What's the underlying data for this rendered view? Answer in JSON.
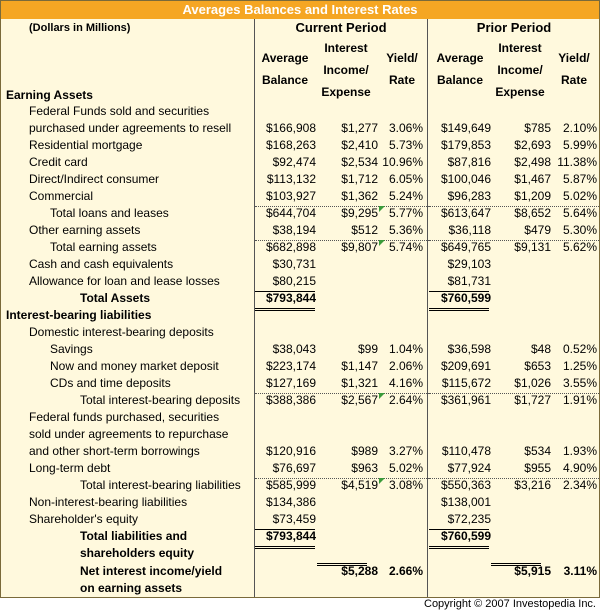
{
  "title": "Averages Balances and Interest Rates",
  "units": "(Dollars in Millions)",
  "groups": {
    "current": "Current Period",
    "prior": "Prior Period"
  },
  "col_headers": {
    "avg_balance": "Average Balance",
    "interest": "Interest Income/ Expense",
    "yield": "Yield/ Rate"
  },
  "labels": [
    {
      "text": "Earning Assets",
      "bold": true
    },
    {
      "text": "Federal Funds sold and securities",
      "bold": false
    },
    {
      "text": "purchased under agreements to resell",
      "bold": false
    },
    {
      "text": "Residential mortgage",
      "bold": false
    },
    {
      "text": "Credit card",
      "bold": false
    },
    {
      "text": "Direct/Indirect consumer",
      "bold": false
    },
    {
      "text": "Commercial",
      "bold": false
    },
    {
      "text": "Total loans and leases",
      "bold": false
    },
    {
      "text": "Other earning assets",
      "bold": false
    },
    {
      "text": "Total earning assets",
      "bold": false
    },
    {
      "text": "Cash and cash equivalents",
      "bold": false
    },
    {
      "text": "Allowance for loan and lease losses",
      "bold": false
    },
    {
      "text": "Total Assets",
      "bold": true
    },
    {
      "text": "Interest-bearing liabilities",
      "bold": true
    },
    {
      "text": "Domestic interest-bearing deposits",
      "bold": false
    },
    {
      "text": "Savings",
      "bold": false
    },
    {
      "text": "Now and money market deposit",
      "bold": false
    },
    {
      "text": "CDs and time deposits",
      "bold": false
    },
    {
      "text": "Total interest-bearing deposits",
      "bold": false
    },
    {
      "text": "Federal funds purchased, securities",
      "bold": false
    },
    {
      "text": "sold under agreements to repurchase",
      "bold": false
    },
    {
      "text": "and other short-term borrowings",
      "bold": false
    },
    {
      "text": "Long-term debt",
      "bold": false
    },
    {
      "text": "Total interest-bearing liabilities",
      "bold": false
    },
    {
      "text": "Non-interest-bearing liabilities",
      "bold": false
    },
    {
      "text": "Shareholder's equity",
      "bold": false
    },
    {
      "text": "Total liabilities and",
      "bold": true
    },
    {
      "text": "shareholders equity",
      "bold": true
    },
    {
      "text": "Net interest income/yield",
      "bold": true
    },
    {
      "text": "on earning assets",
      "bold": true
    }
  ],
  "data_rows": [
    {
      "current": [
        "$166,908",
        "$1,277",
        "3.06%"
      ],
      "prior": [
        "$149,649",
        "$785",
        "2.10%"
      ]
    },
    {
      "current": [
        "$168,263",
        "$2,410",
        "5.73%"
      ],
      "prior": [
        "$179,853",
        "$2,693",
        "5.99%"
      ]
    },
    {
      "current": [
        "$92,474",
        "$2,534",
        "10.96%"
      ],
      "prior": [
        "$87,816",
        "$2,498",
        "11.38%"
      ]
    },
    {
      "current": [
        "$113,132",
        "$1,712",
        "6.05%"
      ],
      "prior": [
        "$100,046",
        "$1,467",
        "5.87%"
      ]
    },
    {
      "current": [
        "$103,927",
        "$1,362",
        "5.24%"
      ],
      "prior": [
        "$96,283",
        "$1,209",
        "5.02%"
      ]
    },
    {
      "current": [
        "$644,704",
        "$9,295",
        "5.77%"
      ],
      "prior": [
        "$613,647",
        "$8,652",
        "5.64%"
      ]
    },
    {
      "current": [
        "$38,194",
        "$512",
        "5.36%"
      ],
      "prior": [
        "$36,118",
        "$479",
        "5.30%"
      ]
    },
    {
      "current": [
        "$682,898",
        "$9,807",
        "5.74%"
      ],
      "prior": [
        "$649,765",
        "$9,131",
        "5.62%"
      ]
    },
    {
      "current": [
        "$30,731",
        "",
        ""
      ],
      "prior": [
        "$29,103",
        "",
        ""
      ]
    },
    {
      "current": [
        "$80,215",
        "",
        ""
      ],
      "prior": [
        "$81,731",
        "",
        ""
      ]
    },
    {
      "current": [
        "$793,844",
        "",
        ""
      ],
      "prior": [
        "$760,599",
        "",
        ""
      ]
    },
    {
      "current": [
        "$38,043",
        "$99",
        "1.04%"
      ],
      "prior": [
        "$36,598",
        "$48",
        "0.52%"
      ]
    },
    {
      "current": [
        "$223,174",
        "$1,147",
        "2.06%"
      ],
      "prior": [
        "$209,691",
        "$653",
        "1.25%"
      ]
    },
    {
      "current": [
        "$127,169",
        "$1,321",
        "4.16%"
      ],
      "prior": [
        "$115,672",
        "$1,026",
        "3.55%"
      ]
    },
    {
      "current": [
        "$388,386",
        "$2,567",
        "2.64%"
      ],
      "prior": [
        "$361,961",
        "$1,727",
        "1.91%"
      ]
    },
    {
      "current": [
        "$120,916",
        "$989",
        "3.27%"
      ],
      "prior": [
        "$110,478",
        "$534",
        "1.93%"
      ]
    },
    {
      "current": [
        "$76,697",
        "$963",
        "5.02%"
      ],
      "prior": [
        "$77,924",
        "$955",
        "4.90%"
      ]
    },
    {
      "current": [
        "$585,999",
        "$4,519",
        "3.08%"
      ],
      "prior": [
        "$550,363",
        "$3,216",
        "2.34%"
      ]
    },
    {
      "current": [
        "$134,386",
        "",
        ""
      ],
      "prior": [
        "$138,001",
        "",
        ""
      ]
    },
    {
      "current": [
        "$73,459",
        "",
        ""
      ],
      "prior": [
        "$72,235",
        "",
        ""
      ]
    },
    {
      "current": [
        "$793,844",
        "",
        ""
      ],
      "prior": [
        "$760,599",
        "",
        ""
      ]
    },
    {
      "current": [
        "",
        "$5,288",
        "2.66%"
      ],
      "prior": [
        "",
        "$5,915",
        "3.11%"
      ]
    }
  ],
  "copyright": "Copyright © 2007 Investopedia Inc.",
  "colors": {
    "title_bg": "#f5a623",
    "sheet_bg": "#fff9dd",
    "marker": "#3a9b3a"
  }
}
